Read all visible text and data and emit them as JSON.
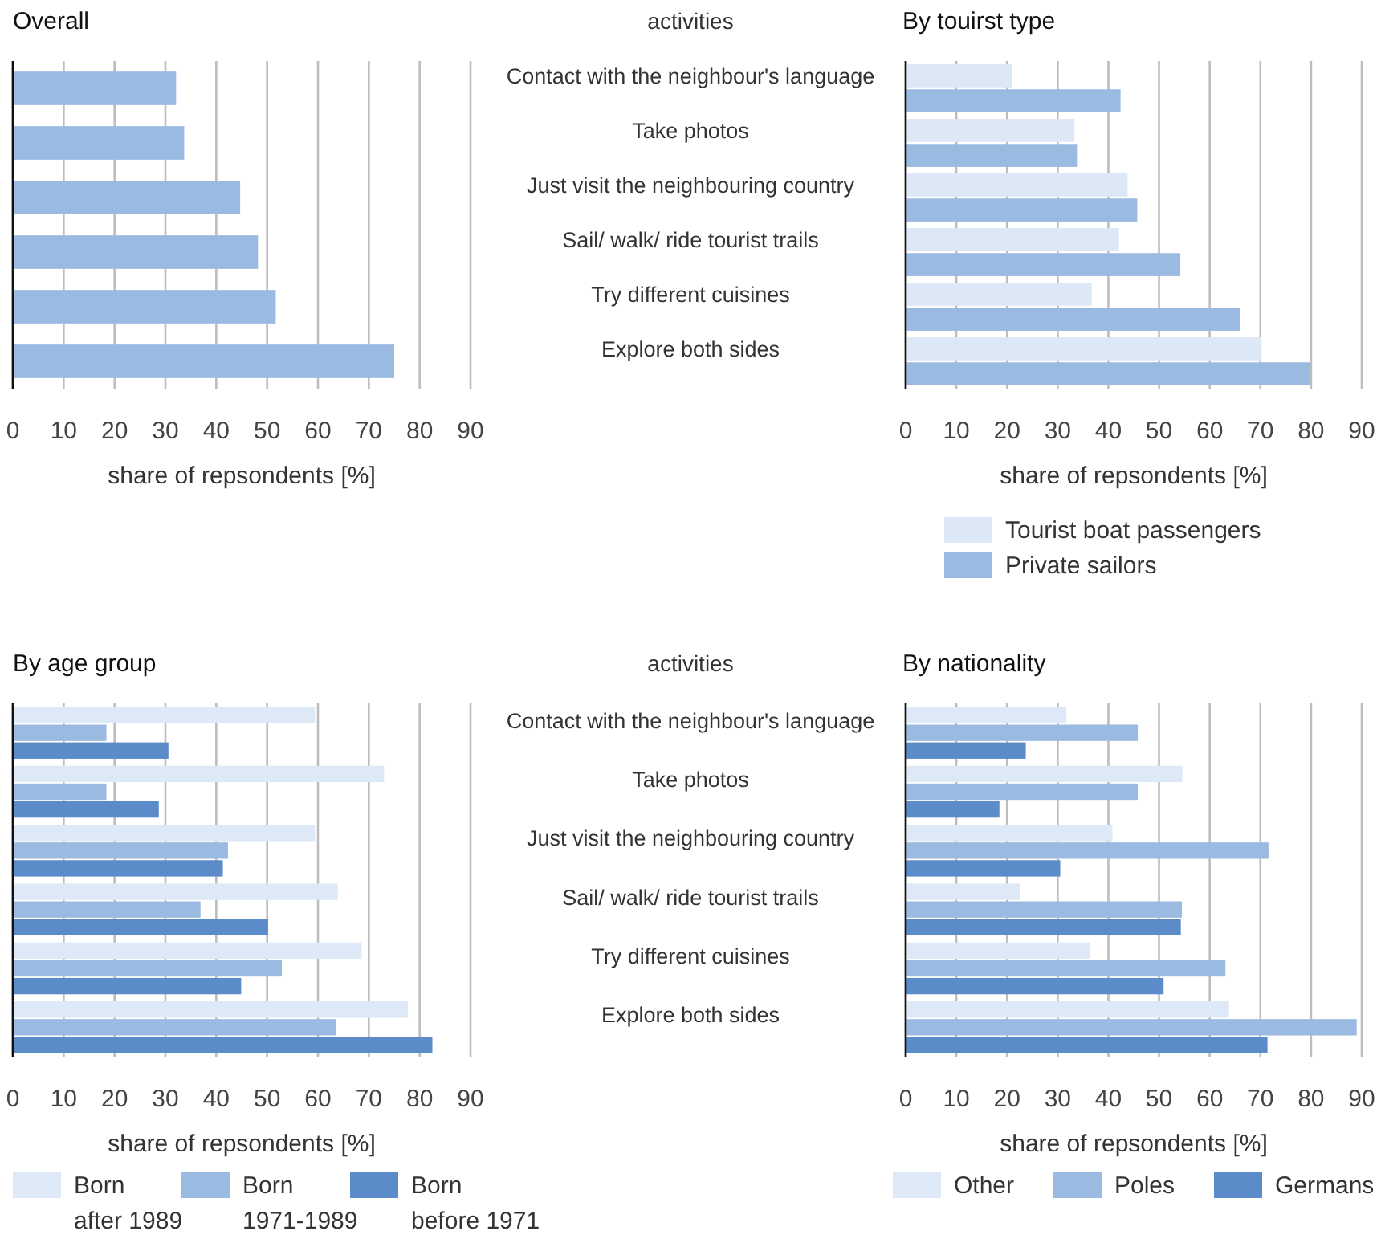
{
  "chart_data": [
    {
      "type": "bar",
      "orientation": "horizontal",
      "title": "Overall",
      "xlabel": "share of repsondents [%]",
      "categories": [
        null,
        null,
        null,
        null,
        null,
        null
      ],
      "values": [
        32.1,
        33.7,
        44.7,
        48.2,
        51.7,
        75
      ],
      "color": "#9bbae2",
      "xlim": [
        0,
        90
      ],
      "xticks": [
        0,
        10,
        20,
        30,
        40,
        50,
        60,
        70,
        80,
        90
      ],
      "grid": "x"
    },
    {
      "type": "bar",
      "orientation": "horizontal",
      "title": "By touirst type",
      "xlabel": "share of repsondents [%]",
      "ylabel": "activities",
      "categories": [
        "Contact with the neighbour's language",
        "Take photos",
        "Just visit the neighbouring country",
        "Sail/ walk/ ride tourist trails",
        "Try different cuisines",
        "Explore both sides"
      ],
      "series": [
        {
          "name": "Tourist boat passengers",
          "color": "#dde8f6",
          "values": [
            21,
            33.3,
            43.8,
            42.1,
            36.7,
            70.1
          ]
        },
        {
          "name": "Private sailors",
          "color": "#9bbae2",
          "values": [
            42.4,
            33.8,
            45.7,
            54.2,
            66,
            79.7
          ]
        }
      ],
      "xlim": [
        0,
        90
      ],
      "xticks": [
        0,
        10,
        20,
        30,
        40,
        50,
        60,
        70,
        80,
        90
      ],
      "grid": "x",
      "legend": "bottom"
    },
    {
      "type": "bar",
      "orientation": "horizontal",
      "title": "By age group",
      "xlabel": "share of repsondents [%]",
      "categories": [
        null,
        null,
        null,
        null,
        null,
        null
      ],
      "series": [
        {
          "name": "Born after 1989",
          "color": "#dde9f6",
          "values": [
            59.4,
            73,
            59.4,
            63.9,
            68.6,
            77.7
          ]
        },
        {
          "name": "Born 1971-1989",
          "color": "#9bbae2",
          "values": [
            18.4,
            18.4,
            42.3,
            36.9,
            52.9,
            63.5
          ]
        },
        {
          "name": "Born before 1971",
          "color": "#5b8cc9",
          "values": [
            30.6,
            28.7,
            41.3,
            50.2,
            44.9,
            82.5
          ]
        }
      ],
      "xlim": [
        0,
        90
      ],
      "xticks": [
        0,
        10,
        20,
        30,
        40,
        50,
        60,
        70,
        80,
        90
      ],
      "grid": "x",
      "legend": "bottom"
    },
    {
      "type": "bar",
      "orientation": "horizontal",
      "title": "By nationality",
      "xlabel": "share of repsondents [%]",
      "ylabel": "activities",
      "categories": [
        "Contact with the neighbour's language",
        "Take photos",
        "Just visit the neighbouring country",
        "Sail/ walk/ ride tourist trails",
        "Try different cuisines",
        "Explore both sides"
      ],
      "series": [
        {
          "name": "Other",
          "color": "#dde9f6",
          "values": [
            31.7,
            54.6,
            40.8,
            22.6,
            36.4,
            63.8
          ]
        },
        {
          "name": "Poles",
          "color": "#9bbae2",
          "values": [
            45.8,
            45.8,
            71.6,
            54.5,
            63.1,
            89
          ]
        },
        {
          "name": "Germans",
          "color": "#5b8cc9",
          "values": [
            23.7,
            18.5,
            30.5,
            54.3,
            50.9,
            71.4
          ]
        }
      ],
      "xlim": [
        0,
        90
      ],
      "xticks": [
        0,
        10,
        20,
        30,
        40,
        50,
        60,
        70,
        80,
        90
      ],
      "grid": "x",
      "legend": "bottom"
    }
  ]
}
